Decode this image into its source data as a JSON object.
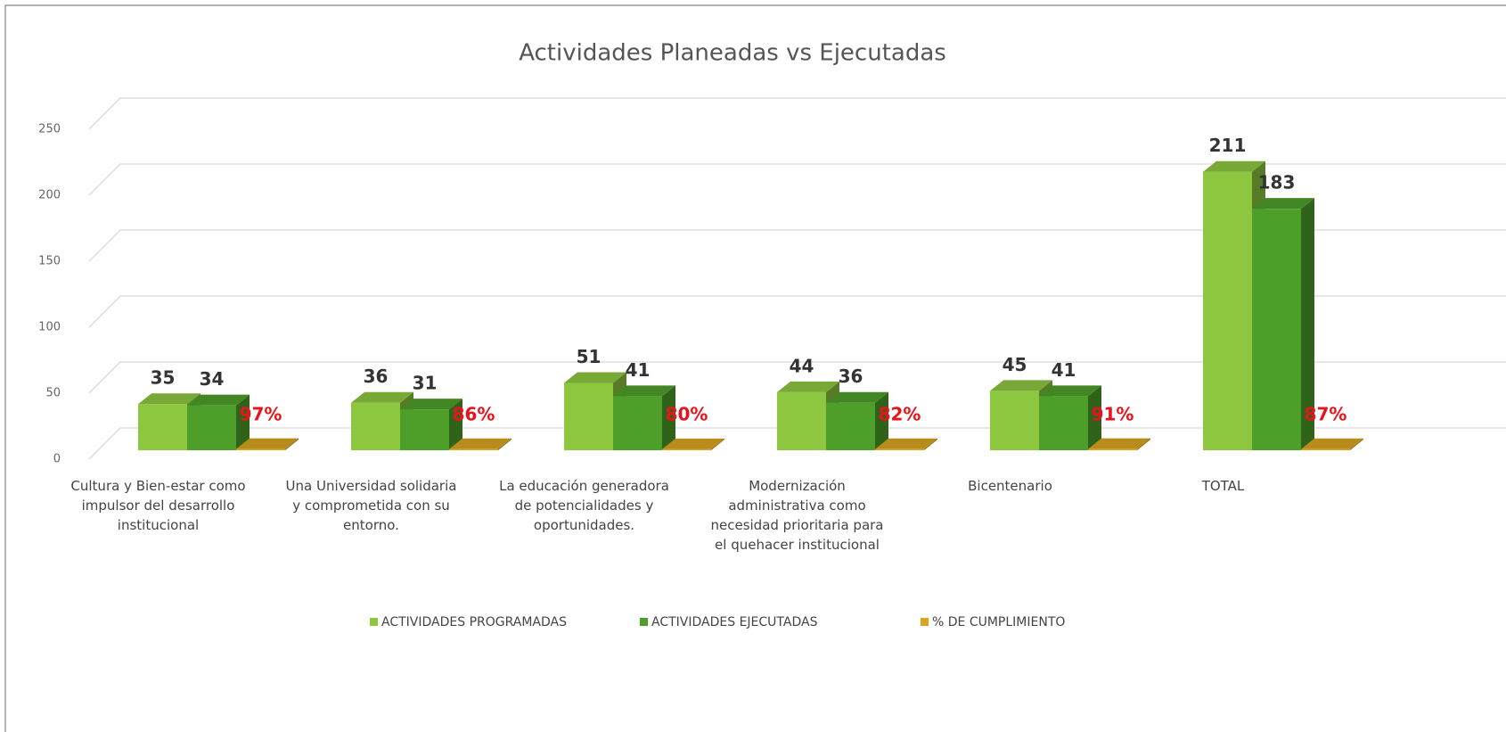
{
  "chart_data": {
    "type": "bar3d",
    "title": "Actividades Planeadas vs Ejecutadas",
    "categories": [
      "Cultura y Bien-estar como impulsor del desarrollo institucional",
      "Una Universidad solidaria y comprometida con su entorno.",
      "La educación generadora de potencialidades y oportunidades.",
      "Modernización administrativa como necesidad prioritaria para el quehacer institucional",
      "Bicentenario",
      "TOTAL"
    ],
    "series": [
      {
        "name": "ACTIVIDADES PROGRAMADAS",
        "color": "#8dc63f",
        "values": [
          35,
          36,
          51,
          44,
          45,
          211
        ]
      },
      {
        "name": "ACTIVIDADES EJECUTADAS",
        "color": "#4e9f2a",
        "values": [
          34,
          31,
          41,
          36,
          41,
          183
        ]
      },
      {
        "name": "% DE CUMPLIMIENTO",
        "color": "#d9a520",
        "values": [
          0.97,
          0.86,
          0.8,
          0.82,
          0.91,
          0.87
        ],
        "value_labels": [
          "97%",
          "86%",
          "80%",
          "82%",
          "91%",
          "87%"
        ]
      }
    ],
    "ylim": [
      0,
      250
    ],
    "yticks": [
      0,
      50,
      100,
      150,
      200,
      250
    ],
    "grid": true,
    "legend": "bottom"
  }
}
